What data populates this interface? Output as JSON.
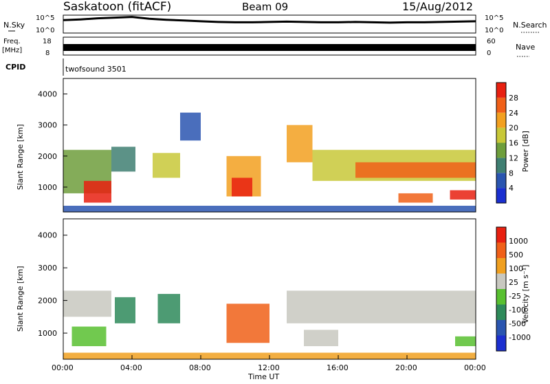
{
  "header": {
    "station": "Saskatoon (fitACF)",
    "beam": "Beam 09",
    "date": "15/Aug/2012"
  },
  "chart_data": [
    {
      "type": "line",
      "panel": "noise",
      "left_label": "N.Sky",
      "right_label": "N.Search",
      "left_ticks": [
        "10^5",
        "10^0"
      ],
      "right_ticks": [
        "10^5",
        "10^0"
      ],
      "series": [
        {
          "key": "sky",
          "x": [
            0,
            1,
            2,
            3,
            4,
            5,
            6,
            7,
            8,
            9,
            10,
            11,
            12,
            13,
            14,
            15,
            16,
            17,
            18,
            19,
            20,
            21,
            22,
            23,
            24
          ],
          "values": [
            3.6,
            3.8,
            4.1,
            4.3,
            4.5,
            4.0,
            3.7,
            3.5,
            3.3,
            3.1,
            3.0,
            3.0,
            3.1,
            3.2,
            3.1,
            3.0,
            3.0,
            3.1,
            3.0,
            2.9,
            3.0,
            3.0,
            3.1,
            3.2,
            3.3
          ]
        }
      ],
      "ylim": [
        0,
        5
      ]
    },
    {
      "type": "line",
      "panel": "frequency",
      "left_label": "Freq.",
      "left_unit": "[MHz]",
      "right_label": "Nave",
      "left_ticks": [
        "18",
        "8"
      ],
      "right_ticks": [
        "60",
        "0"
      ],
      "series": [
        {
          "key": "freq",
          "x": [
            0,
            24
          ],
          "values": [
            11.5,
            11.5
          ]
        }
      ],
      "ylim": [
        8,
        18
      ]
    },
    {
      "type": "text",
      "panel": "cpid",
      "label": "CPID",
      "value": "twofsound 3501"
    },
    {
      "type": "heatmap",
      "panel": "power",
      "ylabel": "Slant Range [km]",
      "yticks": [
        "4000",
        "3000",
        "2000",
        "1000"
      ],
      "colorbar_label": "Power [dB]",
      "colorbar_ticks": [
        "28",
        "24",
        "20",
        "16",
        "12",
        "8",
        "4"
      ],
      "colors": [
        "#1a2fd0",
        "#2a55b0",
        "#3f7f72",
        "#6e9e3c",
        "#c8c838",
        "#f2a020",
        "#f06018",
        "#e82010"
      ],
      "regions": [
        {
          "x0": 0.0,
          "x1": 2.8,
          "y0": 800,
          "y1": 2200,
          "level": 3
        },
        {
          "x0": 1.2,
          "x1": 2.8,
          "y0": 500,
          "y1": 1200,
          "level": 7
        },
        {
          "x0": 2.8,
          "x1": 4.2,
          "y0": 1500,
          "y1": 2300,
          "level": 2
        },
        {
          "x0": 5.2,
          "x1": 6.8,
          "y0": 1300,
          "y1": 2100,
          "level": 4
        },
        {
          "x0": 6.8,
          "x1": 8.0,
          "y0": 2500,
          "y1": 3400,
          "level": 1
        },
        {
          "x0": 9.5,
          "x1": 11.5,
          "y0": 700,
          "y1": 2000,
          "level": 5
        },
        {
          "x0": 9.8,
          "x1": 11.0,
          "y0": 700,
          "y1": 1300,
          "level": 7
        },
        {
          "x0": 13.0,
          "x1": 14.5,
          "y0": 1800,
          "y1": 3000,
          "level": 5
        },
        {
          "x0": 14.5,
          "x1": 24.0,
          "y0": 1200,
          "y1": 2200,
          "level": 4
        },
        {
          "x0": 17.0,
          "x1": 24.0,
          "y0": 1300,
          "y1": 1800,
          "level": 6
        },
        {
          "x0": 19.5,
          "x1": 21.5,
          "y0": 500,
          "y1": 800,
          "level": 6
        },
        {
          "x0": 22.5,
          "x1": 24.0,
          "y0": 600,
          "y1": 900,
          "level": 7
        },
        {
          "x0": 0.0,
          "x1": 24.0,
          "y0": 200,
          "y1": 400,
          "level": 1
        }
      ]
    },
    {
      "type": "heatmap",
      "panel": "velocity",
      "xlabel": "Time UT",
      "xticks": [
        "00:00",
        "04:00",
        "08:00",
        "12:00",
        "16:00",
        "20:00",
        "00:00"
      ],
      "ylabel": "Slant Range [km]",
      "yticks": [
        "4000",
        "3000",
        "2000",
        "1000"
      ],
      "colorbar_label": "Velocity [m s⁻¹]",
      "colorbar_ticks": [
        "1000",
        "500",
        "100",
        "25",
        "-25",
        "-100",
        "-500",
        "-1000"
      ],
      "colors": [
        "#1c2fd0",
        "#2a55b0",
        "#2e8a5a",
        "#58c030",
        "#c8c8c0",
        "#f0a020",
        "#f06018",
        "#e82010"
      ],
      "regions": [
        {
          "x0": 0.0,
          "x1": 2.8,
          "y0": 1500,
          "y1": 2300,
          "level": 4
        },
        {
          "x0": 0.5,
          "x1": 2.5,
          "y0": 600,
          "y1": 1200,
          "level": 3
        },
        {
          "x0": 3.0,
          "x1": 4.2,
          "y0": 1300,
          "y1": 2100,
          "level": 2
        },
        {
          "x0": 5.5,
          "x1": 6.8,
          "y0": 1300,
          "y1": 2200,
          "level": 2
        },
        {
          "x0": 9.5,
          "x1": 12.0,
          "y0": 700,
          "y1": 1900,
          "level": 6
        },
        {
          "x0": 13.0,
          "x1": 24.0,
          "y0": 1300,
          "y1": 2300,
          "level": 4
        },
        {
          "x0": 14.0,
          "x1": 16.0,
          "y0": 600,
          "y1": 1100,
          "level": 4
        },
        {
          "x0": 22.8,
          "x1": 24.0,
          "y0": 600,
          "y1": 900,
          "level": 3
        },
        {
          "x0": 0.0,
          "x1": 24.0,
          "y0": 200,
          "y1": 400,
          "level": 5
        }
      ]
    }
  ]
}
